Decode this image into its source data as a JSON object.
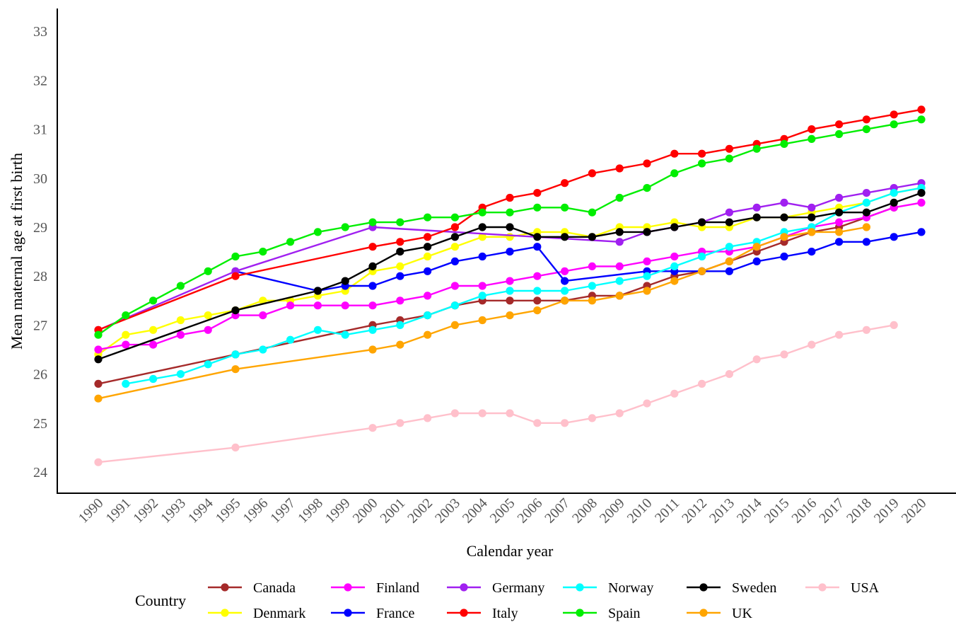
{
  "chart_data": {
    "type": "line",
    "title": "",
    "xlabel": "Calendar year",
    "ylabel": "Mean maternal age at first birth",
    "xlim": [
      1990,
      2020
    ],
    "ylim": [
      23.5,
      33.4
    ],
    "yticks": [
      24,
      25,
      26,
      27,
      28,
      29,
      30,
      31,
      32,
      33
    ],
    "grid": false,
    "legend": {
      "title": "Country",
      "placement": "bottom"
    },
    "x": [
      1990,
      1991,
      1992,
      1993,
      1994,
      1995,
      1996,
      1997,
      1998,
      1999,
      2000,
      2001,
      2002,
      2003,
      2004,
      2005,
      2006,
      2007,
      2008,
      2009,
      2010,
      2011,
      2012,
      2013,
      2014,
      2015,
      2016,
      2017,
      2018,
      2019,
      2020
    ],
    "series": [
      {
        "name": "Canada",
        "color": "#a52a2a",
        "points": [
          [
            1990,
            25.8
          ],
          [
            1995,
            26.4
          ],
          [
            2000,
            27.0
          ],
          [
            2001,
            27.1
          ],
          [
            2002,
            27.2
          ],
          [
            2003,
            27.4
          ],
          [
            2004,
            27.5
          ],
          [
            2005,
            27.5
          ],
          [
            2006,
            27.5
          ],
          [
            2007,
            27.5
          ],
          [
            2008,
            27.6
          ],
          [
            2009,
            27.6
          ],
          [
            2010,
            27.8
          ],
          [
            2011,
            28.0
          ],
          [
            2012,
            28.1
          ],
          [
            2013,
            28.3
          ],
          [
            2014,
            28.5
          ],
          [
            2015,
            28.7
          ],
          [
            2016,
            28.9
          ],
          [
            2017,
            29.0
          ],
          [
            2018,
            29.2
          ],
          [
            2019,
            29.4
          ]
        ]
      },
      {
        "name": "Denmark",
        "color": "#ffff00",
        "points": [
          [
            1990,
            26.4
          ],
          [
            1991,
            26.8
          ],
          [
            1992,
            26.9
          ],
          [
            1993,
            27.1
          ],
          [
            1994,
            27.2
          ],
          [
            1995,
            27.3
          ],
          [
            1996,
            27.5
          ],
          [
            1997,
            27.5
          ],
          [
            1998,
            27.6
          ],
          [
            1999,
            27.7
          ],
          [
            2000,
            28.1
          ],
          [
            2001,
            28.2
          ],
          [
            2002,
            28.4
          ],
          [
            2003,
            28.6
          ],
          [
            2004,
            28.8
          ],
          [
            2005,
            28.8
          ],
          [
            2006,
            28.9
          ],
          [
            2007,
            28.9
          ],
          [
            2008,
            28.8
          ],
          [
            2009,
            29.0
          ],
          [
            2010,
            29.0
          ],
          [
            2011,
            29.1
          ],
          [
            2012,
            29.0
          ],
          [
            2013,
            29.0
          ],
          [
            2014,
            29.2
          ],
          [
            2015,
            29.2
          ],
          [
            2016,
            29.3
          ],
          [
            2017,
            29.4
          ],
          [
            2018,
            29.5
          ],
          [
            2019,
            29.7
          ],
          [
            2020,
            29.8
          ]
        ]
      },
      {
        "name": "Finland",
        "color": "#ff00ff",
        "points": [
          [
            1990,
            26.5
          ],
          [
            1991,
            26.6
          ],
          [
            1992,
            26.6
          ],
          [
            1993,
            26.8
          ],
          [
            1994,
            26.9
          ],
          [
            1995,
            27.2
          ],
          [
            1996,
            27.2
          ],
          [
            1997,
            27.4
          ],
          [
            1998,
            27.4
          ],
          [
            1999,
            27.4
          ],
          [
            2000,
            27.4
          ],
          [
            2001,
            27.5
          ],
          [
            2002,
            27.6
          ],
          [
            2003,
            27.8
          ],
          [
            2004,
            27.8
          ],
          [
            2005,
            27.9
          ],
          [
            2006,
            28.0
          ],
          [
            2007,
            28.1
          ],
          [
            2008,
            28.2
          ],
          [
            2009,
            28.2
          ],
          [
            2010,
            28.3
          ],
          [
            2011,
            28.4
          ],
          [
            2012,
            28.5
          ],
          [
            2013,
            28.5
          ],
          [
            2014,
            28.6
          ],
          [
            2015,
            28.8
          ],
          [
            2016,
            29.0
          ],
          [
            2017,
            29.1
          ],
          [
            2018,
            29.2
          ],
          [
            2019,
            29.4
          ],
          [
            2020,
            29.5
          ]
        ]
      },
      {
        "name": "France",
        "color": "#0000ff",
        "points": [
          [
            1995,
            28.1
          ],
          [
            1998,
            27.7
          ],
          [
            1999,
            27.8
          ],
          [
            2000,
            27.8
          ],
          [
            2001,
            28.0
          ],
          [
            2002,
            28.1
          ],
          [
            2003,
            28.3
          ],
          [
            2004,
            28.4
          ],
          [
            2005,
            28.5
          ],
          [
            2006,
            28.6
          ],
          [
            2007,
            27.9
          ],
          [
            2010,
            28.1
          ],
          [
            2011,
            28.1
          ],
          [
            2012,
            28.1
          ],
          [
            2013,
            28.1
          ],
          [
            2014,
            28.3
          ],
          [
            2015,
            28.4
          ],
          [
            2016,
            28.5
          ],
          [
            2017,
            28.7
          ],
          [
            2018,
            28.7
          ],
          [
            2019,
            28.8
          ],
          [
            2020,
            28.9
          ]
        ]
      },
      {
        "name": "Germany",
        "color": "#a020f0",
        "points": [
          [
            1990,
            26.9
          ],
          [
            1995,
            28.1
          ],
          [
            2000,
            29.0
          ],
          [
            2009,
            28.7
          ],
          [
            2010,
            28.9
          ],
          [
            2011,
            29.0
          ],
          [
            2012,
            29.1
          ],
          [
            2013,
            29.3
          ],
          [
            2014,
            29.4
          ],
          [
            2015,
            29.5
          ],
          [
            2016,
            29.4
          ],
          [
            2017,
            29.6
          ],
          [
            2018,
            29.7
          ],
          [
            2019,
            29.8
          ],
          [
            2020,
            29.9
          ]
        ]
      },
      {
        "name": "Italy",
        "color": "#ff0000",
        "points": [
          [
            1990,
            26.9
          ],
          [
            1995,
            28.0
          ],
          [
            2000,
            28.6
          ],
          [
            2001,
            28.7
          ],
          [
            2002,
            28.8
          ],
          [
            2003,
            29.0
          ],
          [
            2004,
            29.4
          ],
          [
            2005,
            29.6
          ],
          [
            2006,
            29.7
          ],
          [
            2007,
            29.9
          ],
          [
            2008,
            30.1
          ],
          [
            2009,
            30.2
          ],
          [
            2010,
            30.3
          ],
          [
            2011,
            30.5
          ],
          [
            2012,
            30.5
          ],
          [
            2013,
            30.6
          ],
          [
            2014,
            30.7
          ],
          [
            2015,
            30.8
          ],
          [
            2016,
            31.0
          ],
          [
            2017,
            31.1
          ],
          [
            2018,
            31.2
          ],
          [
            2019,
            31.3
          ],
          [
            2020,
            31.4
          ]
        ]
      },
      {
        "name": "Norway",
        "color": "#00ffff",
        "points": [
          [
            1991,
            25.8
          ],
          [
            1992,
            25.9
          ],
          [
            1993,
            26.0
          ],
          [
            1994,
            26.2
          ],
          [
            1995,
            26.4
          ],
          [
            1996,
            26.5
          ],
          [
            1997,
            26.7
          ],
          [
            1998,
            26.9
          ],
          [
            1999,
            26.8
          ],
          [
            2000,
            26.9
          ],
          [
            2001,
            27.0
          ],
          [
            2002,
            27.2
          ],
          [
            2003,
            27.4
          ],
          [
            2004,
            27.6
          ],
          [
            2005,
            27.7
          ],
          [
            2006,
            27.7
          ],
          [
            2007,
            27.7
          ],
          [
            2008,
            27.8
          ],
          [
            2009,
            27.9
          ],
          [
            2010,
            28.0
          ],
          [
            2011,
            28.2
          ],
          [
            2012,
            28.4
          ],
          [
            2013,
            28.6
          ],
          [
            2014,
            28.7
          ],
          [
            2015,
            28.9
          ],
          [
            2016,
            29.0
          ],
          [
            2017,
            29.3
          ],
          [
            2018,
            29.5
          ],
          [
            2019,
            29.7
          ],
          [
            2020,
            29.8
          ]
        ]
      },
      {
        "name": "Spain",
        "color": "#00ee00",
        "points": [
          [
            1990,
            26.8
          ],
          [
            1991,
            27.2
          ],
          [
            1992,
            27.5
          ],
          [
            1993,
            27.8
          ],
          [
            1994,
            28.1
          ],
          [
            1995,
            28.4
          ],
          [
            1996,
            28.5
          ],
          [
            1997,
            28.7
          ],
          [
            1998,
            28.9
          ],
          [
            1999,
            29.0
          ],
          [
            2000,
            29.1
          ],
          [
            2001,
            29.1
          ],
          [
            2002,
            29.2
          ],
          [
            2003,
            29.2
          ],
          [
            2004,
            29.3
          ],
          [
            2005,
            29.3
          ],
          [
            2006,
            29.4
          ],
          [
            2007,
            29.4
          ],
          [
            2008,
            29.3
          ],
          [
            2009,
            29.6
          ],
          [
            2010,
            29.8
          ],
          [
            2011,
            30.1
          ],
          [
            2012,
            30.3
          ],
          [
            2013,
            30.4
          ],
          [
            2014,
            30.6
          ],
          [
            2015,
            30.7
          ],
          [
            2016,
            30.8
          ],
          [
            2017,
            30.9
          ],
          [
            2018,
            31.0
          ],
          [
            2019,
            31.1
          ],
          [
            2020,
            31.2
          ]
        ]
      },
      {
        "name": "Sweden",
        "color": "#000000",
        "points": [
          [
            1990,
            26.3
          ],
          [
            1995,
            27.3
          ],
          [
            1998,
            27.7
          ],
          [
            1999,
            27.9
          ],
          [
            2000,
            28.2
          ],
          [
            2001,
            28.5
          ],
          [
            2002,
            28.6
          ],
          [
            2003,
            28.8
          ],
          [
            2004,
            29.0
          ],
          [
            2005,
            29.0
          ],
          [
            2006,
            28.8
          ],
          [
            2007,
            28.8
          ],
          [
            2008,
            28.8
          ],
          [
            2009,
            28.9
          ],
          [
            2010,
            28.9
          ],
          [
            2011,
            29.0
          ],
          [
            2012,
            29.1
          ],
          [
            2013,
            29.1
          ],
          [
            2014,
            29.2
          ],
          [
            2015,
            29.2
          ],
          [
            2016,
            29.2
          ],
          [
            2017,
            29.3
          ],
          [
            2018,
            29.3
          ],
          [
            2019,
            29.5
          ],
          [
            2020,
            29.7
          ]
        ]
      },
      {
        "name": "UK",
        "color": "#ffa500",
        "points": [
          [
            1990,
            25.5
          ],
          [
            1995,
            26.1
          ],
          [
            2000,
            26.5
          ],
          [
            2001,
            26.6
          ],
          [
            2002,
            26.8
          ],
          [
            2003,
            27.0
          ],
          [
            2004,
            27.1
          ],
          [
            2005,
            27.2
          ],
          [
            2006,
            27.3
          ],
          [
            2007,
            27.5
          ],
          [
            2008,
            27.5
          ],
          [
            2009,
            27.6
          ],
          [
            2010,
            27.7
          ],
          [
            2011,
            27.9
          ],
          [
            2012,
            28.1
          ],
          [
            2013,
            28.3
          ],
          [
            2014,
            28.6
          ],
          [
            2015,
            28.8
          ],
          [
            2016,
            28.9
          ],
          [
            2017,
            28.9
          ],
          [
            2018,
            29.0
          ]
        ]
      },
      {
        "name": "USA",
        "color": "#ffc0cb",
        "points": [
          [
            1990,
            24.2
          ],
          [
            1995,
            24.5
          ],
          [
            2000,
            24.9
          ],
          [
            2001,
            25.0
          ],
          [
            2002,
            25.1
          ],
          [
            2003,
            25.2
          ],
          [
            2004,
            25.2
          ],
          [
            2005,
            25.2
          ],
          [
            2006,
            25.0
          ],
          [
            2007,
            25.0
          ],
          [
            2008,
            25.1
          ],
          [
            2009,
            25.2
          ],
          [
            2010,
            25.4
          ],
          [
            2011,
            25.6
          ],
          [
            2012,
            25.8
          ],
          [
            2013,
            26.0
          ],
          [
            2014,
            26.3
          ],
          [
            2015,
            26.4
          ],
          [
            2016,
            26.6
          ],
          [
            2017,
            26.8
          ],
          [
            2018,
            26.9
          ],
          [
            2019,
            27.0
          ]
        ]
      }
    ]
  }
}
